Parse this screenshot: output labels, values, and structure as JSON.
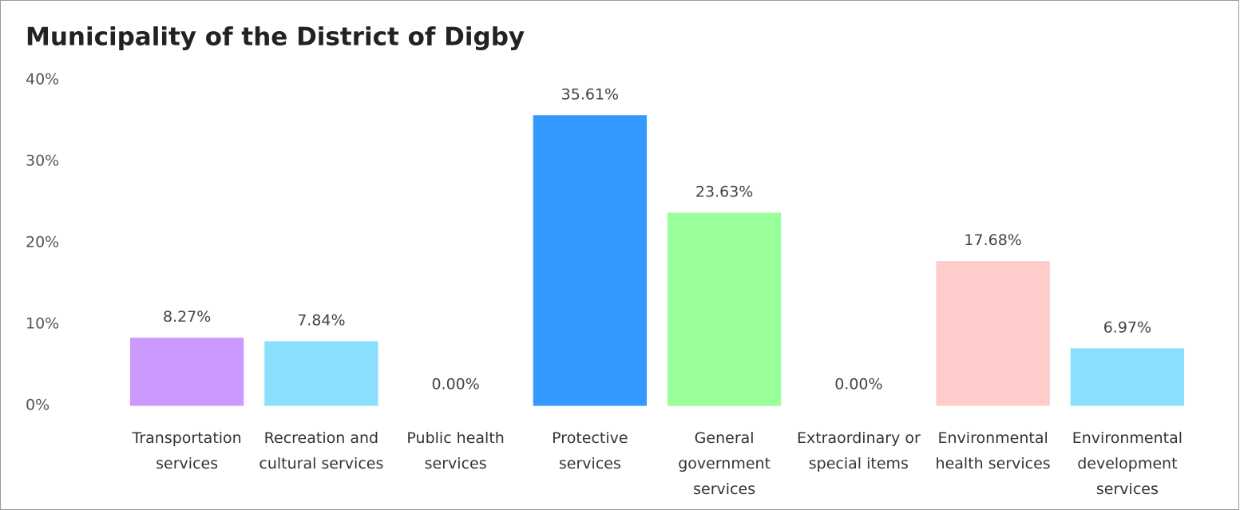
{
  "chart_data": {
    "type": "bar",
    "title": "Municipality of the District of Digby",
    "categories": [
      "Transportation services",
      "Recreation and cultural services",
      "Public health services",
      "Protective services",
      "General government services",
      "Extraordinary or special items",
      "Environmental health services",
      "Environmental development services"
    ],
    "values": [
      8.27,
      7.84,
      0.0,
      35.61,
      23.63,
      0.0,
      17.68,
      6.97
    ],
    "value_labels": [
      "8.27%",
      "7.84%",
      "0.00%",
      "35.61%",
      "23.63%",
      "0.00%",
      "17.68%",
      "6.97%"
    ],
    "colors": [
      "#cc99ff",
      "#8ae0fc",
      "#ffffff",
      "#3399ff",
      "#99ff99",
      "#007a00",
      "#ffcccc",
      "#8ae0fc"
    ],
    "ylim": [
      0,
      40
    ],
    "yticks": [
      {
        "value": 0,
        "label": "0%"
      },
      {
        "value": 10,
        "label": "10%"
      },
      {
        "value": 20,
        "label": "20%"
      },
      {
        "value": 30,
        "label": "30%"
      },
      {
        "value": 40,
        "label": "40%"
      }
    ],
    "grid": false
  }
}
